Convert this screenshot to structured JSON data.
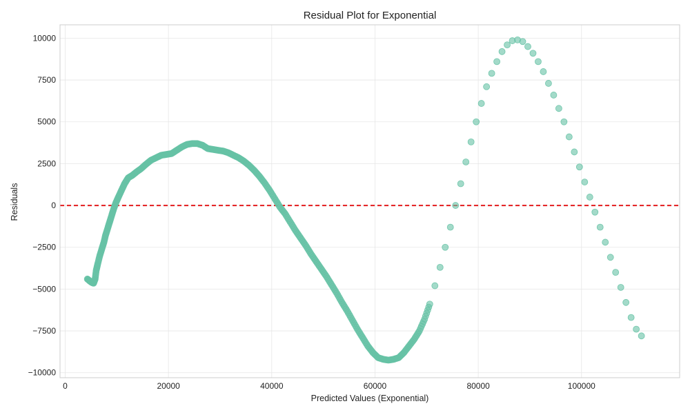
{
  "chart_data": {
    "type": "scatter",
    "title": "Residual Plot for Exponential",
    "xlabel": "Predicted Values (Exponential)",
    "ylabel": "Residuals",
    "xlim": [
      -1000,
      119000
    ],
    "ylim": [
      -10300,
      10800
    ],
    "xticks": [
      0,
      20000,
      40000,
      60000,
      80000,
      100000
    ],
    "yticks": [
      -10000,
      -7500,
      -5000,
      -2500,
      0,
      2500,
      5000,
      7500,
      10000
    ],
    "grid": true,
    "reference_line": {
      "y": 0,
      "color": "#e31a1c",
      "style": "dashed"
    },
    "series": [
      {
        "color": "#66c2a5",
        "points": [
          [
            4300,
            -4400
          ],
          [
            4700,
            -4500
          ],
          [
            5100,
            -4600
          ],
          [
            5500,
            -4650
          ],
          [
            5800,
            -4400
          ],
          [
            6000,
            -3900
          ],
          [
            6300,
            -3500
          ],
          [
            6700,
            -3000
          ],
          [
            7100,
            -2600
          ],
          [
            7500,
            -2200
          ],
          [
            7800,
            -1800
          ],
          [
            8200,
            -1400
          ],
          [
            8600,
            -1000
          ],
          [
            9000,
            -600
          ],
          [
            9400,
            -200
          ],
          [
            9800,
            150
          ],
          [
            10300,
            500
          ],
          [
            10900,
            900
          ],
          [
            11500,
            1300
          ],
          [
            12200,
            1650
          ],
          [
            13000,
            1800
          ],
          [
            13800,
            2000
          ],
          [
            14700,
            2200
          ],
          [
            15600,
            2450
          ],
          [
            16600,
            2700
          ],
          [
            17600,
            2850
          ],
          [
            18600,
            3000
          ],
          [
            19600,
            3050
          ],
          [
            20600,
            3100
          ],
          [
            21600,
            3300
          ],
          [
            22600,
            3500
          ],
          [
            23600,
            3650
          ],
          [
            24600,
            3700
          ],
          [
            25600,
            3700
          ],
          [
            26600,
            3600
          ],
          [
            27600,
            3400
          ],
          [
            28600,
            3350
          ],
          [
            29600,
            3300
          ],
          [
            30600,
            3250
          ],
          [
            31600,
            3150
          ],
          [
            32600,
            3000
          ],
          [
            33600,
            2850
          ],
          [
            34600,
            2650
          ],
          [
            35600,
            2400
          ],
          [
            36600,
            2100
          ],
          [
            37600,
            1750
          ],
          [
            38600,
            1350
          ],
          [
            39600,
            900
          ],
          [
            40600,
            400
          ],
          [
            41600,
            -100
          ],
          [
            42600,
            -500
          ],
          [
            43600,
            -1000
          ],
          [
            44600,
            -1500
          ],
          [
            45600,
            -1950
          ],
          [
            46600,
            -2400
          ],
          [
            47600,
            -2900
          ],
          [
            48600,
            -3350
          ],
          [
            49600,
            -3800
          ],
          [
            50600,
            -4250
          ],
          [
            51600,
            -4750
          ],
          [
            52600,
            -5250
          ],
          [
            53600,
            -5800
          ],
          [
            54600,
            -6300
          ],
          [
            55600,
            -6850
          ],
          [
            56600,
            -7400
          ],
          [
            57600,
            -7900
          ],
          [
            58600,
            -8400
          ],
          [
            59600,
            -8800
          ],
          [
            60600,
            -9100
          ],
          [
            61600,
            -9200
          ],
          [
            62600,
            -9250
          ],
          [
            63600,
            -9200
          ],
          [
            64600,
            -9100
          ],
          [
            65600,
            -8800
          ],
          [
            66600,
            -8400
          ],
          [
            67600,
            -8000
          ],
          [
            68600,
            -7500
          ],
          [
            69600,
            -6800
          ],
          [
            70600,
            -5900
          ],
          [
            71600,
            -4800
          ],
          [
            72600,
            -3700
          ],
          [
            73600,
            -2500
          ],
          [
            74600,
            -1300
          ],
          [
            75600,
            0
          ],
          [
            76600,
            1300
          ],
          [
            77600,
            2600
          ],
          [
            78600,
            3800
          ],
          [
            79600,
            5000
          ],
          [
            80600,
            6100
          ],
          [
            81600,
            7100
          ],
          [
            82600,
            7900
          ],
          [
            83600,
            8600
          ],
          [
            84600,
            9200
          ],
          [
            85600,
            9600
          ],
          [
            86600,
            9850
          ],
          [
            87600,
            9900
          ],
          [
            88600,
            9800
          ],
          [
            89600,
            9500
          ],
          [
            90600,
            9100
          ],
          [
            91600,
            8600
          ],
          [
            92600,
            8000
          ],
          [
            93600,
            7300
          ],
          [
            94600,
            6600
          ],
          [
            95600,
            5800
          ],
          [
            96600,
            5000
          ],
          [
            97600,
            4100
          ],
          [
            98600,
            3200
          ],
          [
            99600,
            2300
          ],
          [
            100600,
            1400
          ],
          [
            101600,
            500
          ],
          [
            102600,
            -400
          ],
          [
            103600,
            -1300
          ],
          [
            104600,
            -2200
          ],
          [
            105600,
            -3100
          ],
          [
            106600,
            -4000
          ],
          [
            107600,
            -4900
          ],
          [
            108600,
            -5800
          ],
          [
            109600,
            -6700
          ],
          [
            110600,
            -7400
          ],
          [
            111600,
            -7800
          ]
        ]
      }
    ]
  }
}
